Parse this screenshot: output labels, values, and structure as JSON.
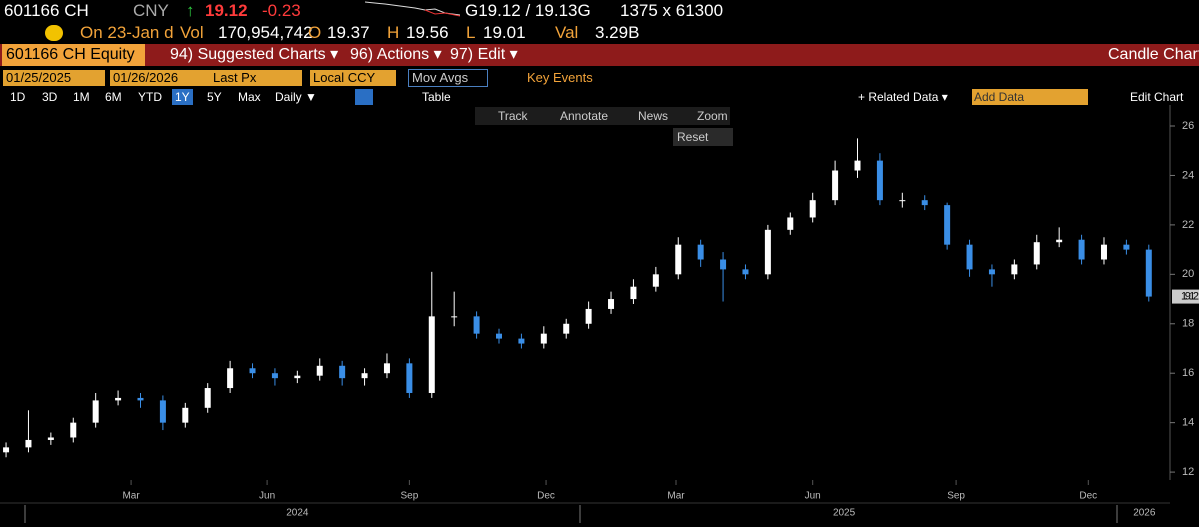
{
  "ui": {
    "header": {
      "ticker": "601166 CH",
      "currency": "CNY",
      "arrow": "↑",
      "last": "19.12",
      "change": "-0.23",
      "bid_ask": "G19.12 / 19.13G",
      "size": "1375 x 61300"
    },
    "quote": {
      "date": "On 23-Jan d",
      "vol_label": "Vol",
      "vol": "170,954,742",
      "open_label": "O",
      "open": "19.37",
      "high_label": "H",
      "high": "19.56",
      "low_label": "L",
      "low": "19.01",
      "val_label": "Val",
      "val": "3.29B"
    },
    "menu": {
      "security": "601166 CH Equity",
      "items": [
        "94) Suggested Charts ▾",
        "96) Actions ▾",
        "97) Edit ▾"
      ],
      "title": "Candle Chart"
    },
    "controls": {
      "start": "01/25/2025",
      "end": "01/26/2026",
      "field": "Last Px",
      "currency": "Local CCY",
      "mov_avgs": "Mov Avgs",
      "key_events": "Key Events"
    },
    "periods": [
      "1D",
      "3D",
      "1M",
      "6M",
      "YTD",
      "1Y",
      "5Y",
      "Max"
    ],
    "frequency": "Daily ▼",
    "table": "Table",
    "related": "+ Related Data ▾",
    "add_data": "Add Data",
    "edit_chart": "Edit Chart",
    "tools": [
      "Track",
      "Annotate",
      "News",
      "Zoom"
    ],
    "reset": "Reset"
  },
  "chart_data": {
    "type": "candlestick",
    "up_color": "#ffffff",
    "down_color": "#3a8ee6",
    "open": [
      12.8,
      13.0,
      13.3,
      13.4,
      14.0,
      14.9,
      15.0,
      14.9,
      14.0,
      14.6,
      15.4,
      16.2,
      16.0,
      15.8,
      15.9,
      16.3,
      15.8,
      16.0,
      16.4,
      15.2,
      18.3,
      18.3,
      17.6,
      17.4,
      17.2,
      17.6,
      18.0,
      18.6,
      19.0,
      19.5,
      20.0,
      21.2,
      20.6,
      20.2,
      20.0,
      21.8,
      22.3,
      23.0,
      24.2,
      24.6,
      23.0,
      23.0,
      22.8,
      21.2,
      20.2,
      20.0,
      20.4,
      21.3,
      21.4,
      20.6,
      21.2,
      21.0
    ],
    "high": [
      13.2,
      14.5,
      13.6,
      14.2,
      15.2,
      15.3,
      15.2,
      15.1,
      14.8,
      15.6,
      16.5,
      16.4,
      16.2,
      16.1,
      16.6,
      16.5,
      16.2,
      16.8,
      16.6,
      20.1,
      19.3,
      18.5,
      17.8,
      17.6,
      17.9,
      18.2,
      18.9,
      19.3,
      19.8,
      20.3,
      21.5,
      21.4,
      20.9,
      20.4,
      22.0,
      22.5,
      23.3,
      24.6,
      25.5,
      24.9,
      23.3,
      23.2,
      22.9,
      21.4,
      20.4,
      20.6,
      21.6,
      21.9,
      21.6,
      21.5,
      21.4,
      21.2
    ],
    "low": [
      12.6,
      12.8,
      13.1,
      13.2,
      13.8,
      14.7,
      14.6,
      13.7,
      13.8,
      14.4,
      15.2,
      15.8,
      15.5,
      15.6,
      15.7,
      15.5,
      15.5,
      15.8,
      15.0,
      15.0,
      17.9,
      17.4,
      17.2,
      17.0,
      17.0,
      17.4,
      17.8,
      18.4,
      18.8,
      19.3,
      19.8,
      20.3,
      18.9,
      19.8,
      19.8,
      21.6,
      22.1,
      22.8,
      23.9,
      22.8,
      22.7,
      22.6,
      21.0,
      19.9,
      19.5,
      19.8,
      20.2,
      21.1,
      20.4,
      20.4,
      20.8,
      18.9
    ],
    "close": [
      13.0,
      13.3,
      13.4,
      14.0,
      14.9,
      15.0,
      14.9,
      14.0,
      14.6,
      15.4,
      16.2,
      16.0,
      15.8,
      15.9,
      16.3,
      15.8,
      16.0,
      16.4,
      15.2,
      18.3,
      18.3,
      17.6,
      17.4,
      17.2,
      17.6,
      18.0,
      18.6,
      19.0,
      19.5,
      20.0,
      21.2,
      20.6,
      20.2,
      20.0,
      21.8,
      22.3,
      23.0,
      24.2,
      24.6,
      23.0,
      23.0,
      22.8,
      21.2,
      20.2,
      20.0,
      20.4,
      21.3,
      21.4,
      20.6,
      21.2,
      21.0,
      19.1
    ],
    "xlim": [
      -0.27,
      51.5
    ],
    "xticks": [
      {
        "value": 5.58,
        "label": "Mar"
      },
      {
        "value": 11.65,
        "label": "Jun"
      },
      {
        "value": 18.0,
        "label": "Sep"
      },
      {
        "value": 24.1,
        "label": "Dec"
      },
      {
        "value": 29.9,
        "label": "Mar"
      },
      {
        "value": 36.0,
        "label": "Jun"
      },
      {
        "value": 42.4,
        "label": "Sep"
      },
      {
        "value": 48.3,
        "label": "Dec"
      }
    ],
    "year_ticks": [
      {
        "value": 13.0,
        "label": "2024"
      },
      {
        "value": 37.4,
        "label": "2025"
      },
      {
        "value": 50.8,
        "label": "2026"
      }
    ],
    "ylim": [
      11.68,
      26.85
    ],
    "yticks": [
      12,
      14,
      16,
      18,
      20,
      22,
      24,
      26
    ]
  }
}
